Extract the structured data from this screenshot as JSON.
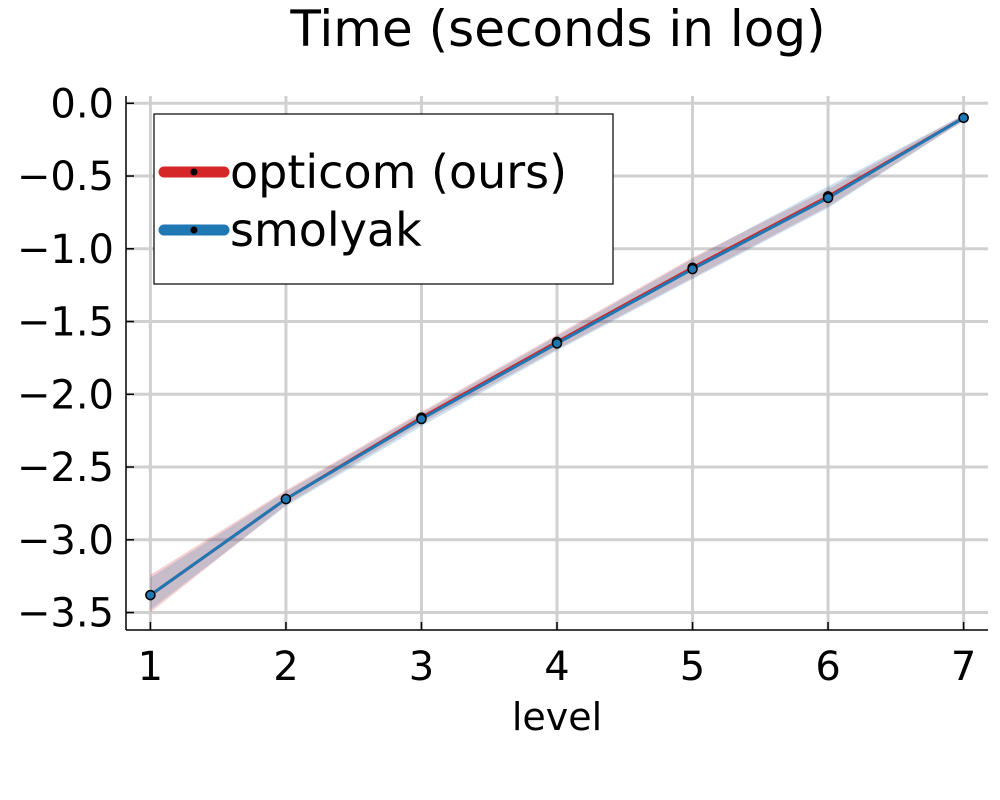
{
  "chart_data": {
    "type": "line",
    "title": "Time (seconds in log)",
    "xlabel": "level",
    "ylabel": "",
    "x": [
      1,
      2,
      3,
      4,
      5,
      6,
      7
    ],
    "xlim": [
      0.82,
      7.18
    ],
    "ylim": [
      -3.62,
      0.05
    ],
    "xticks": [
      1,
      2,
      3,
      4,
      5,
      6,
      7
    ],
    "xtick_labels": [
      "1",
      "2",
      "3",
      "4",
      "5",
      "6",
      "7"
    ],
    "yticks": [
      0.0,
      -0.5,
      -1.0,
      -1.5,
      -2.0,
      -2.5,
      -3.0,
      -3.5
    ],
    "ytick_labels": [
      "0.0",
      "−0.5",
      "−1.0",
      "−1.5",
      "−2.0",
      "−2.5",
      "−3.0",
      "−3.5"
    ],
    "grid": true,
    "legend_position": "top-left",
    "series": [
      {
        "name": "opticom (ours)",
        "color": "#d62728",
        "values": [
          -3.38,
          -2.72,
          -2.16,
          -1.64,
          -1.13,
          -0.64,
          -0.1
        ],
        "lower": [
          -3.5,
          -2.76,
          -2.2,
          -1.69,
          -1.2,
          -0.71,
          -0.12
        ],
        "upper": [
          -3.24,
          -2.66,
          -2.12,
          -1.59,
          -1.06,
          -0.59,
          -0.08
        ]
      },
      {
        "name": "smolyak",
        "color": "#1f77b4",
        "values": [
          -3.38,
          -2.72,
          -2.17,
          -1.65,
          -1.14,
          -0.65,
          -0.1
        ],
        "lower": [
          -3.48,
          -2.77,
          -2.22,
          -1.7,
          -1.21,
          -0.72,
          -0.12
        ],
        "upper": [
          -3.26,
          -2.67,
          -2.13,
          -1.6,
          -1.07,
          -0.57,
          -0.08
        ]
      }
    ]
  }
}
